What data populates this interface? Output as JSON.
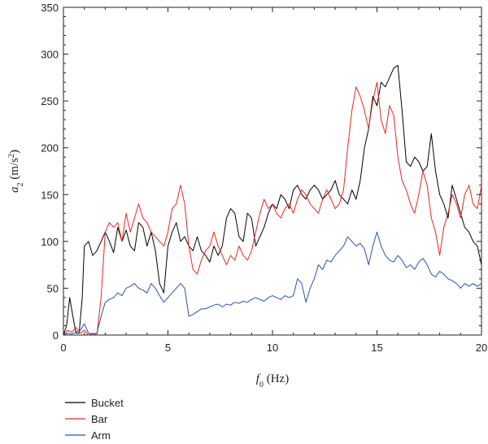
{
  "chart_data": {
    "type": "line",
    "xlabel": {
      "var": "f",
      "sub": "0",
      "unit": " (Hz)"
    },
    "ylabel": {
      "var": "a",
      "sub": "2",
      "unit_open": " (m/s",
      "unit_sup": "2",
      "unit_close": ")"
    },
    "xlim": [
      0,
      20
    ],
    "ylim": [
      0,
      350
    ],
    "xticks": [
      "0",
      "5",
      "10",
      "15",
      "20"
    ],
    "yticks": [
      "0",
      "50",
      "100",
      "150",
      "200",
      "250",
      "300",
      "350"
    ],
    "grid": false,
    "legend_position": "bottom-left",
    "series": [
      {
        "name": "Bucket",
        "color": "#000000",
        "points": [
          [
            0,
            0
          ],
          [
            0.15,
            10
          ],
          [
            0.3,
            40
          ],
          [
            0.45,
            20
          ],
          [
            0.6,
            2
          ],
          [
            0.75,
            2
          ],
          [
            0.9,
            40
          ],
          [
            1.0,
            95
          ],
          [
            1.2,
            100
          ],
          [
            1.4,
            85
          ],
          [
            1.6,
            90
          ],
          [
            1.8,
            100
          ],
          [
            2.0,
            110
          ],
          [
            2.2,
            100
          ],
          [
            2.4,
            88
          ],
          [
            2.6,
            115
          ],
          [
            2.8,
            100
          ],
          [
            3.0,
            112
          ],
          [
            3.2,
            95
          ],
          [
            3.4,
            90
          ],
          [
            3.6,
            120
          ],
          [
            3.8,
            115
          ],
          [
            4.0,
            95
          ],
          [
            4.2,
            110
          ],
          [
            4.4,
            90
          ],
          [
            4.6,
            55
          ],
          [
            4.8,
            45
          ],
          [
            5.0,
            95
          ],
          [
            5.2,
            110
          ],
          [
            5.4,
            120
          ],
          [
            5.6,
            100
          ],
          [
            5.8,
            105
          ],
          [
            6.0,
            95
          ],
          [
            6.2,
            90
          ],
          [
            6.4,
            105
          ],
          [
            6.6,
            90
          ],
          [
            6.8,
            85
          ],
          [
            7.0,
            78
          ],
          [
            7.2,
            95
          ],
          [
            7.4,
            85
          ],
          [
            7.6,
            95
          ],
          [
            7.8,
            125
          ],
          [
            8.0,
            135
          ],
          [
            8.2,
            130
          ],
          [
            8.4,
            105
          ],
          [
            8.6,
            100
          ],
          [
            8.8,
            130
          ],
          [
            9.0,
            125
          ],
          [
            9.2,
            95
          ],
          [
            9.4,
            105
          ],
          [
            9.6,
            115
          ],
          [
            9.8,
            130
          ],
          [
            10.0,
            140
          ],
          [
            10.2,
            135
          ],
          [
            10.4,
            150
          ],
          [
            10.6,
            145
          ],
          [
            10.8,
            135
          ],
          [
            11.0,
            155
          ],
          [
            11.2,
            160
          ],
          [
            11.4,
            150
          ],
          [
            11.6,
            145
          ],
          [
            11.8,
            155
          ],
          [
            12.0,
            160
          ],
          [
            12.2,
            155
          ],
          [
            12.4,
            145
          ],
          [
            12.6,
            150
          ],
          [
            12.8,
            155
          ],
          [
            13.0,
            165
          ],
          [
            13.2,
            150
          ],
          [
            13.4,
            145
          ],
          [
            13.6,
            140
          ],
          [
            13.8,
            155
          ],
          [
            14.0,
            145
          ],
          [
            14.2,
            165
          ],
          [
            14.4,
            200
          ],
          [
            14.6,
            220
          ],
          [
            14.8,
            255
          ],
          [
            15.0,
            245
          ],
          [
            15.2,
            270
          ],
          [
            15.4,
            265
          ],
          [
            15.6,
            275
          ],
          [
            15.8,
            285
          ],
          [
            16.0,
            288
          ],
          [
            16.2,
            240
          ],
          [
            16.4,
            185
          ],
          [
            16.6,
            180
          ],
          [
            16.8,
            190
          ],
          [
            17.0,
            185
          ],
          [
            17.2,
            175
          ],
          [
            17.4,
            180
          ],
          [
            17.6,
            215
          ],
          [
            17.8,
            175
          ],
          [
            18.0,
            150
          ],
          [
            18.2,
            140
          ],
          [
            18.4,
            125
          ],
          [
            18.6,
            160
          ],
          [
            18.8,
            145
          ],
          [
            19.0,
            130
          ],
          [
            19.2,
            115
          ],
          [
            19.4,
            110
          ],
          [
            19.6,
            100
          ],
          [
            19.8,
            95
          ],
          [
            20.0,
            75
          ]
        ]
      },
      {
        "name": "Bar",
        "color": "#e8261e",
        "points": [
          [
            0,
            0
          ],
          [
            0.2,
            5
          ],
          [
            0.4,
            3
          ],
          [
            0.6,
            8
          ],
          [
            0.8,
            2
          ],
          [
            1.0,
            5
          ],
          [
            1.2,
            0
          ],
          [
            1.4,
            2
          ],
          [
            1.6,
            0
          ],
          [
            1.8,
            40
          ],
          [
            2.0,
            110
          ],
          [
            2.2,
            120
          ],
          [
            2.4,
            115
          ],
          [
            2.6,
            120
          ],
          [
            2.8,
            100
          ],
          [
            3.0,
            130
          ],
          [
            3.2,
            110
          ],
          [
            3.4,
            125
          ],
          [
            3.6,
            140
          ],
          [
            3.8,
            125
          ],
          [
            4.0,
            120
          ],
          [
            4.2,
            110
          ],
          [
            4.4,
            105
          ],
          [
            4.6,
            100
          ],
          [
            4.8,
            95
          ],
          [
            5.0,
            110
          ],
          [
            5.2,
            135
          ],
          [
            5.4,
            140
          ],
          [
            5.6,
            160
          ],
          [
            5.8,
            140
          ],
          [
            6.0,
            95
          ],
          [
            6.2,
            70
          ],
          [
            6.4,
            65
          ],
          [
            6.6,
            80
          ],
          [
            6.8,
            90
          ],
          [
            7.0,
            95
          ],
          [
            7.2,
            110
          ],
          [
            7.4,
            95
          ],
          [
            7.6,
            85
          ],
          [
            7.8,
            75
          ],
          [
            8.0,
            85
          ],
          [
            8.2,
            80
          ],
          [
            8.4,
            95
          ],
          [
            8.6,
            85
          ],
          [
            8.8,
            80
          ],
          [
            9.0,
            90
          ],
          [
            9.2,
            110
          ],
          [
            9.4,
            130
          ],
          [
            9.6,
            145
          ],
          [
            9.8,
            135
          ],
          [
            10.0,
            140
          ],
          [
            10.2,
            130
          ],
          [
            10.4,
            125
          ],
          [
            10.6,
            135
          ],
          [
            10.8,
            140
          ],
          [
            11.0,
            130
          ],
          [
            11.2,
            145
          ],
          [
            11.4,
            155
          ],
          [
            11.6,
            150
          ],
          [
            11.8,
            140
          ],
          [
            12.0,
            135
          ],
          [
            12.2,
            130
          ],
          [
            12.4,
            145
          ],
          [
            12.6,
            155
          ],
          [
            12.8,
            145
          ],
          [
            13.0,
            135
          ],
          [
            13.2,
            140
          ],
          [
            13.4,
            155
          ],
          [
            13.6,
            200
          ],
          [
            13.8,
            240
          ],
          [
            14.0,
            265
          ],
          [
            14.2,
            255
          ],
          [
            14.4,
            240
          ],
          [
            14.6,
            220
          ],
          [
            14.8,
            250
          ],
          [
            15.0,
            270
          ],
          [
            15.2,
            230
          ],
          [
            15.4,
            215
          ],
          [
            15.6,
            245
          ],
          [
            15.8,
            235
          ],
          [
            16.0,
            190
          ],
          [
            16.2,
            165
          ],
          [
            16.4,
            155
          ],
          [
            16.6,
            140
          ],
          [
            16.8,
            130
          ],
          [
            17.0,
            150
          ],
          [
            17.2,
            175
          ],
          [
            17.4,
            160
          ],
          [
            17.6,
            125
          ],
          [
            17.8,
            110
          ],
          [
            18.0,
            85
          ],
          [
            18.2,
            115
          ],
          [
            18.4,
            130
          ],
          [
            18.6,
            150
          ],
          [
            18.8,
            140
          ],
          [
            19.0,
            125
          ],
          [
            19.2,
            150
          ],
          [
            19.4,
            160
          ],
          [
            19.6,
            140
          ],
          [
            19.8,
            135
          ],
          [
            20.0,
            160
          ]
        ]
      },
      {
        "name": "Arm",
        "color": "#2f4fb0",
        "points": [
          [
            0,
            0
          ],
          [
            0.2,
            2
          ],
          [
            0.4,
            1
          ],
          [
            0.6,
            3
          ],
          [
            0.8,
            5
          ],
          [
            1.0,
            12
          ],
          [
            1.2,
            2
          ],
          [
            1.4,
            1
          ],
          [
            1.6,
            2
          ],
          [
            1.8,
            20
          ],
          [
            2.0,
            35
          ],
          [
            2.2,
            38
          ],
          [
            2.4,
            40
          ],
          [
            2.6,
            45
          ],
          [
            2.8,
            42
          ],
          [
            3.0,
            50
          ],
          [
            3.2,
            52
          ],
          [
            3.4,
            55
          ],
          [
            3.6,
            50
          ],
          [
            3.8,
            48
          ],
          [
            4.0,
            45
          ],
          [
            4.2,
            55
          ],
          [
            4.4,
            50
          ],
          [
            4.6,
            42
          ],
          [
            4.8,
            35
          ],
          [
            5.0,
            40
          ],
          [
            5.2,
            45
          ],
          [
            5.4,
            50
          ],
          [
            5.6,
            55
          ],
          [
            5.8,
            50
          ],
          [
            6.0,
            20
          ],
          [
            6.2,
            22
          ],
          [
            6.4,
            25
          ],
          [
            6.6,
            28
          ],
          [
            6.8,
            28
          ],
          [
            7.0,
            30
          ],
          [
            7.2,
            32
          ],
          [
            7.4,
            33
          ],
          [
            7.6,
            30
          ],
          [
            7.8,
            33
          ],
          [
            8.0,
            32
          ],
          [
            8.2,
            35
          ],
          [
            8.4,
            34
          ],
          [
            8.6,
            36
          ],
          [
            8.8,
            35
          ],
          [
            9.0,
            38
          ],
          [
            9.2,
            40
          ],
          [
            9.4,
            38
          ],
          [
            9.6,
            36
          ],
          [
            9.8,
            40
          ],
          [
            10.0,
            42
          ],
          [
            10.2,
            40
          ],
          [
            10.4,
            38
          ],
          [
            10.6,
            42
          ],
          [
            10.8,
            40
          ],
          [
            11.0,
            42
          ],
          [
            11.2,
            60
          ],
          [
            11.4,
            55
          ],
          [
            11.6,
            35
          ],
          [
            11.8,
            50
          ],
          [
            12.0,
            60
          ],
          [
            12.2,
            75
          ],
          [
            12.4,
            70
          ],
          [
            12.6,
            80
          ],
          [
            12.8,
            78
          ],
          [
            13.0,
            85
          ],
          [
            13.2,
            90
          ],
          [
            13.4,
            95
          ],
          [
            13.6,
            105
          ],
          [
            13.8,
            100
          ],
          [
            14.0,
            95
          ],
          [
            14.2,
            98
          ],
          [
            14.4,
            92
          ],
          [
            14.6,
            75
          ],
          [
            14.8,
            95
          ],
          [
            15.0,
            110
          ],
          [
            15.2,
            95
          ],
          [
            15.4,
            85
          ],
          [
            15.6,
            80
          ],
          [
            15.8,
            78
          ],
          [
            16.0,
            85
          ],
          [
            16.2,
            80
          ],
          [
            16.4,
            72
          ],
          [
            16.6,
            75
          ],
          [
            16.8,
            70
          ],
          [
            17.0,
            78
          ],
          [
            17.2,
            82
          ],
          [
            17.4,
            75
          ],
          [
            17.6,
            65
          ],
          [
            17.8,
            62
          ],
          [
            18.0,
            68
          ],
          [
            18.2,
            65
          ],
          [
            18.4,
            60
          ],
          [
            18.6,
            58
          ],
          [
            18.8,
            55
          ],
          [
            19.0,
            50
          ],
          [
            19.2,
            55
          ],
          [
            19.4,
            52
          ],
          [
            19.6,
            55
          ],
          [
            19.8,
            52
          ],
          [
            20.0,
            55
          ]
        ]
      }
    ]
  }
}
